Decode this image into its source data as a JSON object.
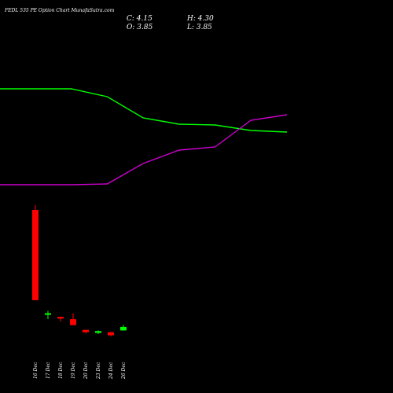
{
  "header": {
    "title": "FEDL 535 PE Option Chart MunafaSutra.com",
    "close_label": "C: 4.15",
    "high_label": "H: 4.30",
    "open_label": "O: 3.85",
    "low_label": "L: 3.85"
  },
  "colors": {
    "background": "#000000",
    "up": "#00ff00",
    "down": "#ff0000",
    "line_green": "#00ff00",
    "line_magenta": "#cc00cc",
    "text": "#ffffff"
  },
  "chart_data": {
    "type": "candlestick",
    "categories": [
      "16 Dec",
      "17 Dec",
      "18 Dec",
      "19 Dec",
      "20 Dec",
      "23 Dec",
      "24 Dec",
      "26 Dec"
    ],
    "candles": [
      {
        "date": "16 Dec",
        "open": 14.0,
        "high": 14.4,
        "low": 6.4,
        "close": 6.4,
        "dir": "down"
      },
      {
        "date": "17 Dec",
        "open": 5.2,
        "high": 5.5,
        "low": 4.8,
        "close": 5.3,
        "dir": "up"
      },
      {
        "date": "18 Dec",
        "open": 5.0,
        "high": 5.0,
        "low": 4.6,
        "close": 4.85,
        "dir": "down"
      },
      {
        "date": "19 Dec",
        "open": 4.8,
        "high": 5.3,
        "low": 4.3,
        "close": 4.3,
        "dir": "down"
      },
      {
        "date": "20 Dec",
        "open": 3.9,
        "high": 3.9,
        "low": 3.6,
        "close": 3.7,
        "dir": "down"
      },
      {
        "date": "23 Dec",
        "open": 3.8,
        "high": 3.85,
        "low": 3.55,
        "close": 3.65,
        "dir": "up"
      },
      {
        "date": "24 Dec",
        "open": 3.7,
        "high": 3.7,
        "low": 3.35,
        "close": 3.45,
        "dir": "down"
      },
      {
        "date": "26 Dec",
        "open": 3.85,
        "high": 4.3,
        "low": 3.85,
        "close": 4.15,
        "dir": "up"
      }
    ],
    "lines": [
      {
        "color": "green",
        "values": [
          113,
          113,
          123,
          150,
          158,
          159,
          166,
          168
        ]
      },
      {
        "color": "magenta",
        "values": [
          235,
          235,
          234,
          208,
          191,
          187,
          153,
          146
        ]
      }
    ]
  }
}
